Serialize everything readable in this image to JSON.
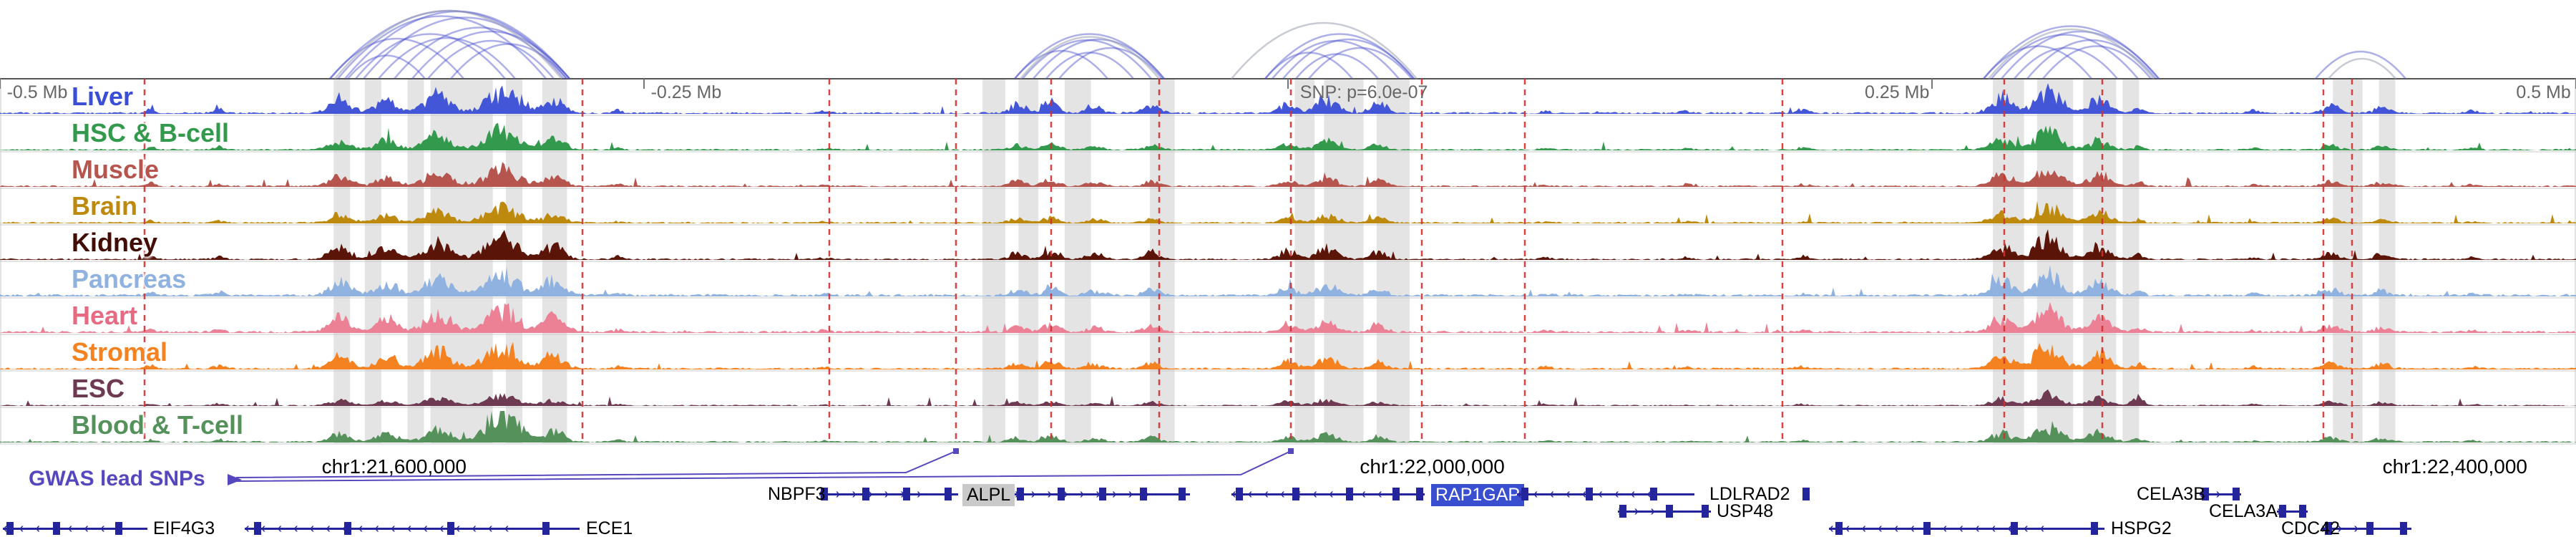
{
  "ruler": {
    "label_color": "#666666",
    "tick_color": "#777777",
    "ticks": [
      0.0,
      0.25,
      0.5,
      0.75,
      1.0
    ],
    "labels": [
      {
        "text": "-0.5 Mb",
        "f": 0.001,
        "align": "start"
      },
      {
        "text": "-0.25 Mb",
        "f": 0.251,
        "align": "start"
      },
      {
        "text": "SNP: p=6.0e-07",
        "f": 0.503,
        "align": "start"
      },
      {
        "text": "0.25 Mb",
        "f": 0.749,
        "align": "end"
      },
      {
        "text": "0.5 Mb",
        "f": 0.998,
        "align": "end"
      }
    ]
  },
  "coordinates": [
    {
      "text": "chr1:21,600,000",
      "f": 0.153
    },
    {
      "text": "chr1:22,000,000",
      "f": 0.556
    },
    {
      "text": "chr1:22,400,000",
      "f": 0.953
    }
  ],
  "gwas": {
    "label": "GWAS lead SNPs",
    "color": "#5547bd",
    "leader_targets": [
      0.371,
      0.501
    ]
  },
  "tracks": [
    {
      "label": "Liver",
      "color": "#4456d8",
      "label_color": "#3b4ed6",
      "noise": 0.06,
      "gain": [
        0.7,
        0.5,
        0.9,
        0.8,
        1.0,
        1.0,
        0.8,
        0.4,
        0.3,
        0.8,
        0.9,
        0.6,
        0.8,
        0.9,
        1.0,
        0.8,
        0.3,
        0.4,
        0.5,
        0.9,
        1.0,
        0.9,
        0.5,
        0.4,
        0.7,
        0.6,
        0.4
      ]
    },
    {
      "label": "HSC & B-cell",
      "color": "#339a4d",
      "label_color": "#339a4d",
      "noise": 0.05,
      "gain": [
        0.3,
        0.4,
        0.6,
        0.7,
        0.8,
        0.9,
        0.6,
        0.3,
        0.2,
        0.4,
        0.5,
        0.3,
        0.4,
        0.5,
        0.6,
        0.4,
        0.2,
        0.2,
        0.3,
        0.6,
        0.8,
        0.6,
        0.3,
        0.2,
        0.5,
        0.4,
        0.3
      ]
    },
    {
      "label": "Muscle",
      "color": "#b5554e",
      "label_color": "#b5554e",
      "noise": 0.05,
      "gain": [
        0.4,
        0.3,
        0.6,
        0.6,
        0.7,
        0.8,
        0.6,
        0.3,
        0.2,
        0.5,
        0.5,
        0.4,
        0.4,
        0.5,
        0.6,
        0.5,
        0.2,
        0.3,
        0.3,
        0.7,
        0.8,
        0.7,
        0.4,
        0.3,
        0.5,
        0.4,
        0.3
      ]
    },
    {
      "label": "Brain",
      "color": "#bd8a0e",
      "label_color": "#bd8a0e",
      "noise": 0.05,
      "gain": [
        0.3,
        0.3,
        0.5,
        0.5,
        0.6,
        0.7,
        0.5,
        0.2,
        0.2,
        0.4,
        0.4,
        0.3,
        0.3,
        0.4,
        0.5,
        0.4,
        0.2,
        0.2,
        0.2,
        0.6,
        0.7,
        0.6,
        0.3,
        0.2,
        0.4,
        0.3,
        0.2
      ]
    },
    {
      "label": "Kidney",
      "color": "#5a1408",
      "label_color": "#420d04",
      "noise": 0.05,
      "gain": [
        0.5,
        0.4,
        0.8,
        0.8,
        0.9,
        1.0,
        0.8,
        0.4,
        0.3,
        0.6,
        0.7,
        0.5,
        0.6,
        0.7,
        0.8,
        0.6,
        0.3,
        0.3,
        0.4,
        0.8,
        1.0,
        0.8,
        0.5,
        0.3,
        0.6,
        0.5,
        0.3
      ]
    },
    {
      "label": "Pancreas",
      "color": "#8fb2e0",
      "label_color": "#8fb2e0",
      "noise": 0.08,
      "gain": [
        0.4,
        0.5,
        0.9,
        0.9,
        1.0,
        1.0,
        0.9,
        0.4,
        0.3,
        0.5,
        0.6,
        0.4,
        0.5,
        0.6,
        0.7,
        0.5,
        0.3,
        0.3,
        0.3,
        0.8,
        1.0,
        0.8,
        0.4,
        0.3,
        0.6,
        0.5,
        0.3
      ]
    },
    {
      "label": "Heart",
      "color": "#ec8094",
      "label_color": "#e66a81",
      "noise": 0.07,
      "gain": [
        0.4,
        0.4,
        0.9,
        0.9,
        1.0,
        1.0,
        0.9,
        0.4,
        0.3,
        0.5,
        0.6,
        0.4,
        0.5,
        0.6,
        0.7,
        0.5,
        0.3,
        0.3,
        0.3,
        0.8,
        1.0,
        0.9,
        0.5,
        0.3,
        0.6,
        0.5,
        0.3
      ]
    },
    {
      "label": "Stromal",
      "color": "#f48220",
      "label_color": "#f48220",
      "noise": 0.06,
      "gain": [
        0.4,
        0.4,
        0.8,
        0.9,
        1.0,
        1.0,
        0.8,
        0.4,
        0.3,
        0.5,
        0.6,
        0.4,
        0.5,
        0.6,
        0.7,
        0.5,
        0.3,
        0.3,
        0.4,
        0.8,
        1.0,
        0.9,
        0.5,
        0.3,
        0.6,
        0.5,
        0.3
      ]
    },
    {
      "label": "ESC",
      "color": "#6e3a52",
      "label_color": "#6e3a52",
      "noise": 0.04,
      "gain": [
        0.2,
        0.2,
        0.3,
        0.3,
        0.4,
        0.4,
        0.3,
        0.2,
        0.1,
        0.3,
        0.3,
        0.2,
        0.3,
        0.3,
        0.4,
        0.3,
        0.2,
        0.1,
        0.2,
        0.4,
        0.5,
        0.4,
        0.9,
        0.2,
        0.3,
        0.3,
        0.2
      ]
    },
    {
      "label": "Blood & T-cell",
      "color": "#55915a",
      "label_color": "#55915a",
      "noise": 0.05,
      "gain": [
        0.3,
        0.3,
        0.5,
        0.6,
        0.7,
        1.4,
        0.6,
        0.3,
        0.2,
        0.4,
        0.4,
        0.3,
        0.4,
        0.4,
        0.5,
        0.4,
        0.2,
        0.2,
        0.3,
        0.5,
        0.7,
        0.6,
        0.3,
        0.2,
        0.4,
        0.4,
        0.3
      ]
    }
  ],
  "clusters": [
    {
      "c": 0.0585,
      "w": 0.0015,
      "a": 0.45
    },
    {
      "c": 0.085,
      "w": 0.002,
      "a": 0.35
    },
    {
      "c": 0.132,
      "w": 0.004,
      "a": 0.75
    },
    {
      "c": 0.15,
      "w": 0.004,
      "a": 0.7
    },
    {
      "c": 0.17,
      "w": 0.005,
      "a": 0.85
    },
    {
      "c": 0.195,
      "w": 0.006,
      "a": 1.0
    },
    {
      "c": 0.215,
      "w": 0.004,
      "a": 0.8
    },
    {
      "c": 0.24,
      "w": 0.002,
      "a": 0.3
    },
    {
      "c": 0.32,
      "w": 0.002,
      "a": 0.25
    },
    {
      "c": 0.395,
      "w": 0.003,
      "a": 0.55
    },
    {
      "c": 0.408,
      "w": 0.003,
      "a": 0.6
    },
    {
      "c": 0.425,
      "w": 0.003,
      "a": 0.5
    },
    {
      "c": 0.447,
      "w": 0.003,
      "a": 0.55
    },
    {
      "c": 0.5,
      "w": 0.003,
      "a": 0.6
    },
    {
      "c": 0.515,
      "w": 0.004,
      "a": 0.65
    },
    {
      "c": 0.535,
      "w": 0.003,
      "a": 0.6
    },
    {
      "c": 0.6,
      "w": 0.002,
      "a": 0.3
    },
    {
      "c": 0.655,
      "w": 0.002,
      "a": 0.3
    },
    {
      "c": 0.7,
      "w": 0.002,
      "a": 0.35
    },
    {
      "c": 0.777,
      "w": 0.004,
      "a": 0.8
    },
    {
      "c": 0.795,
      "w": 0.005,
      "a": 1.0
    },
    {
      "c": 0.815,
      "w": 0.004,
      "a": 0.8
    },
    {
      "c": 0.83,
      "w": 0.002,
      "a": 0.5
    },
    {
      "c": 0.875,
      "w": 0.002,
      "a": 0.3
    },
    {
      "c": 0.905,
      "w": 0.003,
      "a": 0.5
    },
    {
      "c": 0.925,
      "w": 0.003,
      "a": 0.45
    },
    {
      "c": 0.96,
      "w": 0.002,
      "a": 0.3
    }
  ],
  "arcs": {
    "color": "#4a50cc",
    "gray_color": "#9aa0b0",
    "pairs": [
      [
        0.128,
        0.221
      ],
      [
        0.131,
        0.212
      ],
      [
        0.134,
        0.221
      ],
      [
        0.138,
        0.196
      ],
      [
        0.141,
        0.22
      ],
      [
        0.147,
        0.2
      ],
      [
        0.128,
        0.18
      ],
      [
        0.153,
        0.219
      ],
      [
        0.16,
        0.221
      ],
      [
        0.166,
        0.215
      ],
      [
        0.135,
        0.165
      ],
      [
        0.175,
        0.22
      ],
      [
        0.13,
        0.218,
        "g"
      ],
      [
        0.394,
        0.452
      ],
      [
        0.397,
        0.447
      ],
      [
        0.401,
        0.452
      ],
      [
        0.406,
        0.44
      ],
      [
        0.394,
        0.43
      ],
      [
        0.411,
        0.451
      ],
      [
        0.396,
        0.45,
        "g"
      ],
      [
        0.491,
        0.549
      ],
      [
        0.494,
        0.543
      ],
      [
        0.498,
        0.549
      ],
      [
        0.503,
        0.535
      ],
      [
        0.491,
        0.525
      ],
      [
        0.508,
        0.548
      ],
      [
        0.478,
        0.55,
        "g"
      ],
      [
        0.77,
        0.838
      ],
      [
        0.773,
        0.83
      ],
      [
        0.777,
        0.838
      ],
      [
        0.782,
        0.822
      ],
      [
        0.77,
        0.812
      ],
      [
        0.787,
        0.837
      ],
      [
        0.793,
        0.835
      ],
      [
        0.772,
        0.836,
        "g"
      ],
      [
        0.899,
        0.934
      ],
      [
        0.904,
        0.93,
        "g"
      ]
    ]
  },
  "snp_lines": {
    "color": "#d42f2f",
    "positions": [
      0.056,
      0.226,
      0.322,
      0.371,
      0.408,
      0.45,
      0.501,
      0.552,
      0.592,
      0.692,
      0.778,
      0.816,
      0.902,
      0.913
    ]
  },
  "highlight_bands": {
    "color": "rgba(130,130,130,0.22)",
    "ranges": [
      [
        0.1295,
        0.0064
      ],
      [
        0.1416,
        0.0064
      ],
      [
        0.1582,
        0.0064
      ],
      [
        0.1671,
        0.0242
      ],
      [
        0.1964,
        0.0064
      ],
      [
        0.2105,
        0.0096
      ],
      [
        0.3814,
        0.0089
      ],
      [
        0.3954,
        0.0077
      ],
      [
        0.4133,
        0.0102
      ],
      [
        0.4464,
        0.0096
      ],
      [
        0.5026,
        0.0077
      ],
      [
        0.514,
        0.0153
      ],
      [
        0.5344,
        0.0128
      ],
      [
        0.7736,
        0.0121
      ],
      [
        0.7908,
        0.014
      ],
      [
        0.8087,
        0.0128
      ],
      [
        0.824,
        0.0064
      ],
      [
        0.9056,
        0.0115
      ],
      [
        0.9235,
        0.0064
      ]
    ]
  },
  "genes": {
    "color": "#24249c",
    "highlight_blue_bg": "#3a4fd0",
    "highlight_gray_bg": "#c9c9c9",
    "items": [
      {
        "name": "NBPF3",
        "row": 0,
        "label_f": 0.298,
        "start": 0.318,
        "end": 0.372,
        "strand": "+",
        "exons": [
          0.32,
          0.336,
          0.352,
          0.368
        ],
        "style": "plain"
      },
      {
        "name": "ALPL",
        "row": 0,
        "label_f": 0.3735,
        "start": 0.394,
        "end": 0.462,
        "strand": "+",
        "exons": [
          0.396,
          0.412,
          0.428,
          0.444,
          0.459
        ],
        "style": "gray"
      },
      {
        "name": "RAP1GAP",
        "row": 0,
        "label_f": 0.5555,
        "start": 0.478,
        "end": 0.553,
        "strand": "-",
        "exons": [
          0.481,
          0.503,
          0.524,
          0.542,
          0.551
        ],
        "style": "blue"
      },
      {
        "name": "LDLRAD2",
        "row": 0,
        "label_f": 0.6635,
        "start": 0.589,
        "end": 0.658,
        "strand": "-",
        "exons": [
          0.592,
          0.617,
          0.642,
          0.701
        ],
        "style": "plain"
      },
      {
        "name": "CELA3B",
        "row": 0,
        "label_f": 0.8295,
        "start": 0.854,
        "end": 0.87,
        "strand": "+",
        "exons": [
          0.856,
          0.868
        ],
        "style": "plain"
      },
      {
        "name": "USP48",
        "row": 1,
        "label_f": 0.6665,
        "start": 0.628,
        "end": 0.664,
        "strand": "+",
        "exons": [
          0.63,
          0.648,
          0.662
        ],
        "style": "plain"
      },
      {
        "name": "CELA3A",
        "row": 1,
        "label_f": 0.8575,
        "start": 0.884,
        "end": 0.896,
        "strand": "+",
        "exons": [
          0.886,
          0.894
        ],
        "style": "plain"
      },
      {
        "name": "EIF4G3",
        "row": 2,
        "label_f": 0.0595,
        "start": 0.001,
        "end": 0.057,
        "strand": "-",
        "exons": [
          0.004,
          0.022,
          0.046
        ],
        "style": "plain"
      },
      {
        "name": "ECE1",
        "row": 2,
        "label_f": 0.2275,
        "start": 0.095,
        "end": 0.225,
        "strand": "-",
        "exons": [
          0.1,
          0.135,
          0.175,
          0.212
        ],
        "style": "plain"
      },
      {
        "name": "HSPG2",
        "row": 2,
        "label_f": 0.8195,
        "start": 0.71,
        "end": 0.817,
        "strand": "-",
        "exons": [
          0.714,
          0.748,
          0.782,
          0.813
        ],
        "style": "plain"
      },
      {
        "name": "CDC42",
        "row": 2,
        "label_f": 0.8855,
        "start": 0.901,
        "end": 0.936,
        "strand": "+",
        "exons": [
          0.904,
          0.92,
          0.933
        ],
        "style": "plain"
      }
    ]
  }
}
